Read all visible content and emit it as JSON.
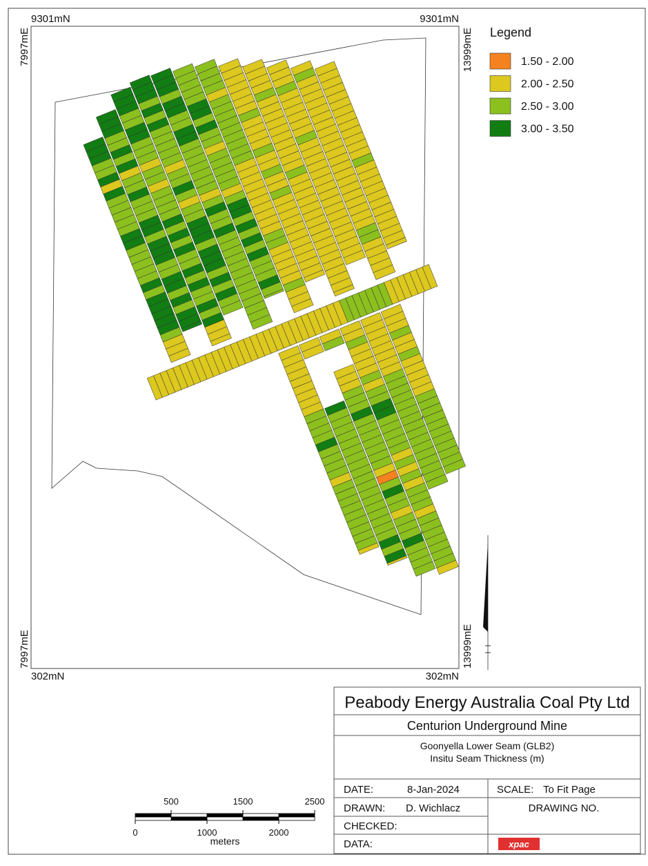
{
  "coordinates": {
    "top_left_n": "9301mN",
    "top_right_n": "9301mN",
    "bottom_left_n": "302mN",
    "bottom_right_n": "302mN",
    "left_top_e": "7997mE",
    "left_bottom_e": "7997mE",
    "right_top_e": "13999mE",
    "right_bottom_e": "13999mE"
  },
  "legend": {
    "title": "Legend",
    "items": [
      {
        "label": "1.50 - 2.00",
        "color": "#f5821f"
      },
      {
        "label": "2.00 - 2.50",
        "color": "#dcc81e"
      },
      {
        "label": "2.50 - 3.00",
        "color": "#8cc01e"
      },
      {
        "label": "3.00 - 3.50",
        "color": "#127d12"
      }
    ]
  },
  "title_block": {
    "company": "Peabody Energy Australia Coal Pty Ltd",
    "mine": "Centurion Underground Mine",
    "seam": "Goonyella Lower Seam (GLB2)",
    "subject": "Insitu Seam Thickness (m)",
    "date_label": "DATE:",
    "date": "8-Jan-2024",
    "scale_label": "SCALE:",
    "scale": "To Fit Page",
    "drawn_label": "DRAWN:",
    "drawn": "D. Wichlacz",
    "drawing_no_label": "DRAWING NO.",
    "checked_label": "CHECKED:",
    "data_label": "DATA:",
    "logo": "xpac"
  },
  "scale_bar": {
    "range": [
      0,
      2500
    ],
    "top_labels": [
      500,
      1500,
      2500
    ],
    "bottom_labels": [
      0,
      1000,
      2000
    ],
    "unit": "meters"
  }
}
